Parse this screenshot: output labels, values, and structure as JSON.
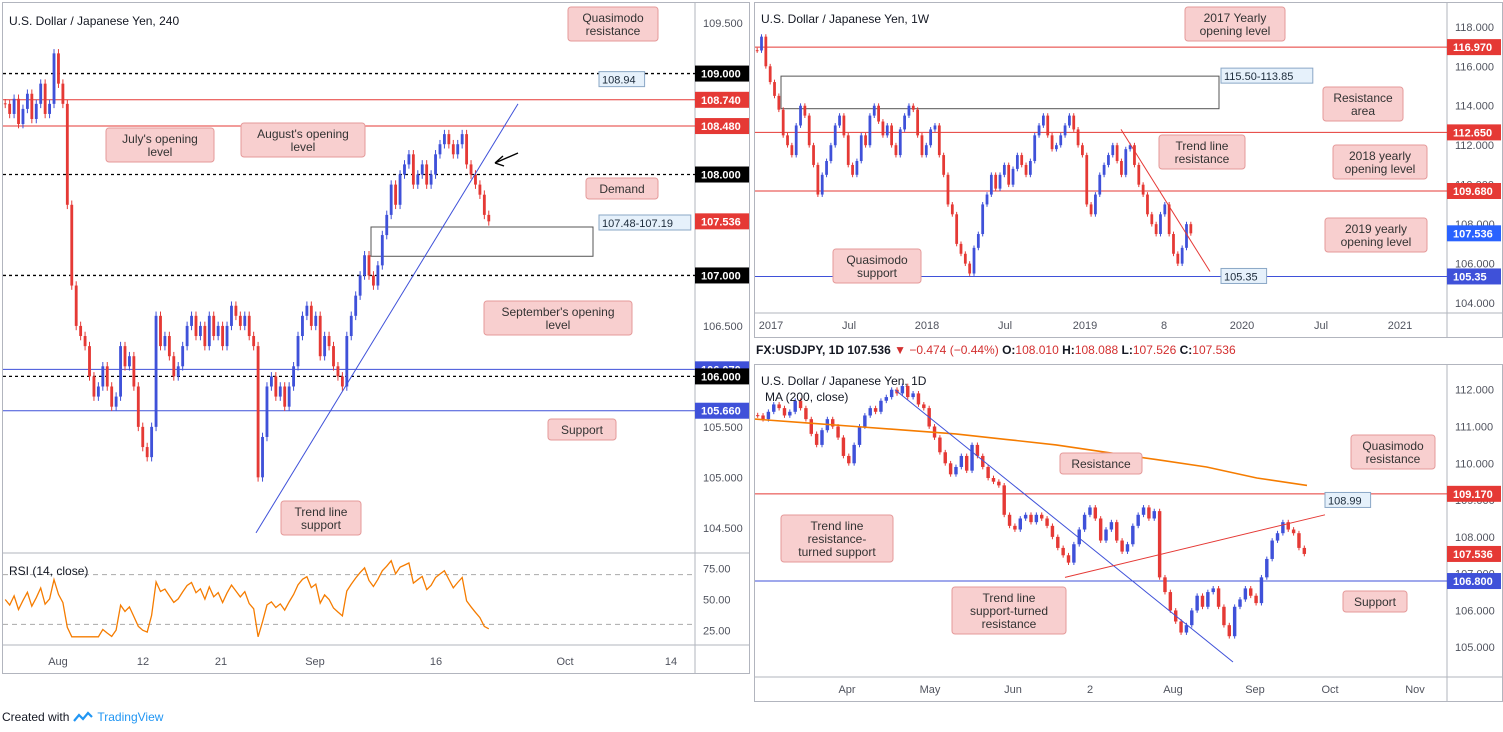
{
  "footer": {
    "created_with": "Created with",
    "brand": "TradingView"
  },
  "colors": {
    "up": "#3f51d9",
    "down": "#e53935",
    "red_line": "#e53935",
    "blue_line": "#3f51d9",
    "ma": "#f57c00",
    "rsi": "#f57c00",
    "callout_bg": "#f8cfcf",
    "callout_border": "#e59a9a",
    "tag_bg": "#e6f1fb"
  },
  "info_bar": {
    "symbol": "FX:USDJPY, 1D",
    "price": "107.536",
    "change": "▼ −0.474 (−0.44%)",
    "open_label": "O:",
    "open": "108.010",
    "high_label": "H:",
    "high": "108.088",
    "low_label": "L:",
    "low": "107.526",
    "close_label": "C:",
    "close": "107.536"
  },
  "chart_data": [
    {
      "id": "h4",
      "type": "candlestick",
      "title": "U.S. Dollar / Japanese Yen, 240",
      "ylim": [
        104.3,
        109.6
      ],
      "y_ticks": [
        "109.500",
        "109.000",
        "108.500",
        "108.000",
        "107.500",
        "107.000",
        "106.500",
        "106.000",
        "105.500",
        "105.000",
        "104.500"
      ],
      "x_ticks": [
        "Aug",
        "12",
        "21",
        "Sep",
        "16",
        "Oct",
        "14"
      ],
      "levels": [
        {
          "label": "109.000",
          "value": 109.0,
          "style": "dotted-black"
        },
        {
          "label": "108.740",
          "value": 108.74,
          "style": "red"
        },
        {
          "label": "108.480",
          "value": 108.48,
          "style": "red"
        },
        {
          "label": "108.000",
          "value": 108.0,
          "style": "dotted-black"
        },
        {
          "label": "107.536",
          "value": 107.536,
          "style": "price"
        },
        {
          "label": "107.000",
          "value": 107.0,
          "style": "dotted-black"
        },
        {
          "label": "106.070",
          "value": 106.07,
          "style": "blue"
        },
        {
          "label": "106.000",
          "value": 106.0,
          "style": "dotted-black"
        },
        {
          "label": "105.660",
          "value": 105.66,
          "style": "blue"
        }
      ],
      "tags": [
        {
          "label": "108.94",
          "value": 108.94
        },
        {
          "label": "107.48-107.19",
          "value": 107.48
        }
      ],
      "callouts": [
        "Quasimodo resistance",
        "July's opening level",
        "August's opening level",
        "Demand",
        "September's opening level",
        "Support",
        "Trend line support"
      ],
      "rsi": {
        "label": "RSI (14, close)",
        "ticks": [
          "75.00",
          "50.00",
          "25.00"
        ],
        "bands": [
          70,
          30
        ]
      },
      "closes": [
        108.7,
        108.6,
        108.75,
        108.5,
        108.65,
        108.8,
        108.55,
        108.7,
        108.9,
        108.6,
        108.7,
        109.2,
        108.9,
        108.7,
        107.7,
        106.9,
        106.5,
        106.4,
        106.3,
        106.0,
        105.8,
        105.9,
        106.1,
        105.9,
        105.7,
        105.8,
        106.3,
        106.1,
        106.2,
        105.9,
        105.5,
        105.3,
        105.2,
        105.5,
        106.6,
        106.3,
        106.4,
        106.2,
        106.0,
        106.1,
        106.3,
        106.5,
        106.6,
        106.4,
        106.5,
        106.3,
        106.6,
        106.4,
        106.5,
        106.3,
        106.5,
        106.7,
        106.6,
        106.5,
        106.6,
        106.4,
        106.3,
        105.0,
        105.4,
        105.9,
        106.0,
        105.8,
        105.9,
        105.7,
        105.9,
        106.1,
        106.4,
        106.6,
        106.7,
        106.5,
        106.6,
        106.2,
        106.4,
        106.3,
        106.1,
        106.0,
        105.9,
        106.4,
        106.6,
        106.8,
        107.0,
        107.2,
        107.0,
        106.9,
        107.1,
        107.4,
        107.6,
        107.9,
        107.7,
        108.0,
        108.1,
        108.2,
        107.9,
        108.0,
        108.1,
        107.9,
        108.0,
        108.2,
        108.3,
        108.4,
        108.3,
        108.2,
        108.3,
        108.4,
        108.1,
        108.0,
        107.9,
        107.8,
        107.6,
        107.536
      ]
    },
    {
      "id": "weekly",
      "type": "candlestick",
      "title": "U.S. Dollar / Japanese Yen, 1W",
      "ylim": [
        103.6,
        118.8
      ],
      "y_ticks": [
        "118.000",
        "116.000",
        "114.000",
        "112.000",
        "110.000",
        "108.000",
        "106.000",
        "104.000"
      ],
      "x_ticks": [
        "2017",
        "Jul",
        "2018",
        "Jul",
        "2019",
        "8",
        "2020",
        "Jul",
        "2021"
      ],
      "levels": [
        {
          "label": "116.970",
          "value": 116.97,
          "style": "red"
        },
        {
          "label": "112.650",
          "value": 112.65,
          "style": "red"
        },
        {
          "label": "109.680",
          "value": 109.68,
          "style": "red"
        },
        {
          "label": "107.536",
          "value": 107.536,
          "style": "price-blue"
        },
        {
          "label": "105.35",
          "value": 105.35,
          "style": "blue"
        }
      ],
      "tags": [
        {
          "label": "115.50-113.85",
          "value": 115.5
        },
        {
          "label": "105.35",
          "value": 105.35
        }
      ],
      "callouts": [
        "2017 Yearly opening level",
        "Resistance area",
        "Trend line resistance",
        "2018 yearly opening level",
        "2019 yearly opening level",
        "Quasimodo support"
      ],
      "closes": [
        116.8,
        117.5,
        116.0,
        115.2,
        114.5,
        113.8,
        112.5,
        112.0,
        111.5,
        113.0,
        114.0,
        113.5,
        112.0,
        111.0,
        109.5,
        110.5,
        111.2,
        112.0,
        113.0,
        113.5,
        112.5,
        111.0,
        110.5,
        111.2,
        112.5,
        112.0,
        113.5,
        114.0,
        113.2,
        112.5,
        113.0,
        112.0,
        111.5,
        112.8,
        113.5,
        114.0,
        113.8,
        112.5,
        111.5,
        112.0,
        112.8,
        113.0,
        111.5,
        110.5,
        109.0,
        108.5,
        107.0,
        106.5,
        106.0,
        105.5,
        106.8,
        107.5,
        109.0,
        109.5,
        110.5,
        109.8,
        110.5,
        111.0,
        110.0,
        110.8,
        111.5,
        111.0,
        110.5,
        111.2,
        112.5,
        113.0,
        113.5,
        112.5,
        111.8,
        112.0,
        112.5,
        113.0,
        113.5,
        112.8,
        112.0,
        111.5,
        109.0,
        108.5,
        109.5,
        110.5,
        111.0,
        111.5,
        112.0,
        111.2,
        110.5,
        111.8,
        112.0,
        111.0,
        110.0,
        109.5,
        108.5,
        108.0,
        107.5,
        108.5,
        109.0,
        107.5,
        106.5,
        106.0,
        106.8,
        108.0,
        107.536
      ]
    },
    {
      "id": "daily",
      "type": "candlestick",
      "title": "U.S. Dollar / Japanese Yen, 1D",
      "subtitle": "MA (200, close)",
      "ylim": [
        104.3,
        112.4
      ],
      "y_ticks": [
        "112.000",
        "111.000",
        "110.000",
        "109.000",
        "108.000",
        "107.000",
        "106.000",
        "105.000"
      ],
      "x_ticks": [
        "Apr",
        "May",
        "Jun",
        "2",
        "Aug",
        "Sep",
        "Oct",
        "Nov"
      ],
      "levels": [
        {
          "label": "109.170",
          "value": 109.17,
          "style": "red"
        },
        {
          "label": "107.536",
          "value": 107.536,
          "style": "price"
        },
        {
          "label": "106.800",
          "value": 106.8,
          "style": "blue"
        }
      ],
      "tags": [
        {
          "label": "108.99",
          "value": 108.99
        }
      ],
      "callouts": [
        "Resistance",
        "Quasimodo resistance",
        "Trend line resistance-turned support",
        "Trend line support-turned resistance",
        "Support"
      ],
      "closes": [
        111.3,
        111.2,
        111.4,
        111.6,
        111.5,
        111.3,
        111.4,
        111.7,
        111.5,
        111.2,
        110.8,
        110.5,
        110.9,
        111.2,
        111.0,
        110.7,
        110.2,
        110.0,
        110.5,
        111.0,
        111.3,
        111.5,
        111.4,
        111.7,
        111.8,
        112.0,
        111.9,
        112.1,
        111.8,
        111.9,
        111.6,
        111.5,
        111.0,
        110.7,
        110.3,
        110.0,
        109.7,
        109.9,
        110.2,
        109.8,
        110.5,
        110.2,
        109.9,
        109.6,
        109.5,
        109.4,
        108.6,
        108.3,
        108.2,
        108.5,
        108.6,
        108.4,
        108.6,
        108.5,
        108.3,
        108.0,
        107.7,
        107.5,
        107.3,
        107.8,
        108.2,
        108.6,
        108.8,
        108.5,
        107.9,
        108.2,
        108.4,
        107.9,
        107.6,
        107.8,
        108.3,
        108.6,
        108.8,
        108.5,
        108.7,
        106.9,
        106.5,
        106.0,
        105.7,
        105.4,
        105.6,
        106.0,
        106.4,
        106.1,
        106.5,
        106.6,
        106.1,
        105.6,
        105.3,
        106.1,
        106.3,
        106.6,
        106.4,
        106.2,
        106.9,
        107.4,
        107.9,
        108.1,
        108.4,
        108.2,
        108.1,
        107.7,
        107.536
      ],
      "ma_200": [
        111.2,
        111.1,
        111.0,
        110.9,
        110.8,
        110.65,
        110.5,
        110.3,
        110.1,
        109.9,
        109.6,
        109.4
      ]
    }
  ]
}
